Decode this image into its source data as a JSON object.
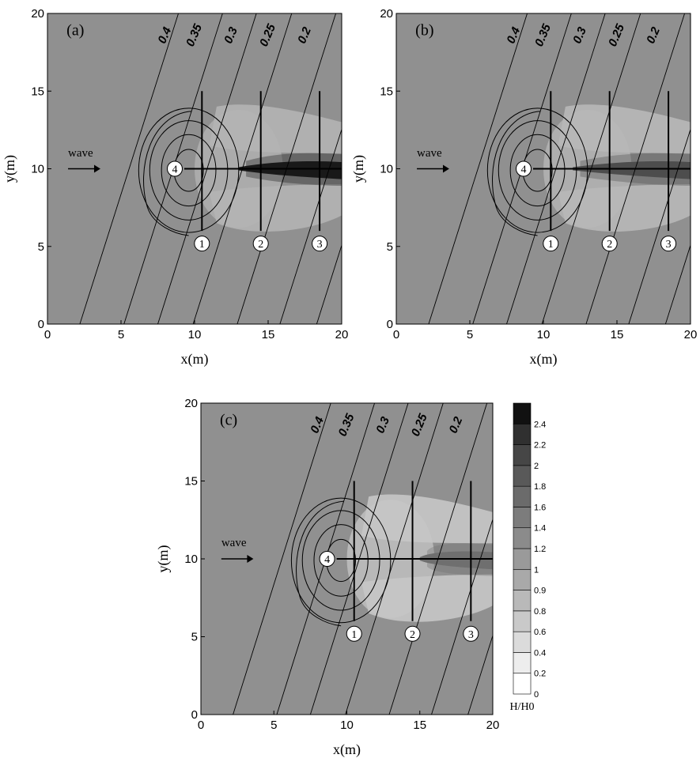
{
  "chart_data": [
    {
      "type": "heatmap",
      "panel_label": "(a)",
      "xlabel": "x(m)",
      "ylabel": "y(m)",
      "xlim": [
        0,
        20
      ],
      "ylim": [
        0,
        20
      ],
      "x_ticks": [
        "0",
        "5",
        "10",
        "15",
        "20"
      ],
      "y_ticks": [
        "0",
        "5",
        "10",
        "15",
        "20"
      ],
      "depth_contours": [
        "0.4",
        "0.35",
        "0.3",
        "0.25",
        "0.2"
      ],
      "wave_label": "wave",
      "transects": [
        {
          "id": "1",
          "x": 10.5,
          "y_from": 6,
          "y_to": 15
        },
        {
          "id": "2",
          "x": 14.5,
          "y_from": 6,
          "y_to": 15
        },
        {
          "id": "3",
          "x": 18.5,
          "y_from": 6,
          "y_to": 15
        },
        {
          "id": "4",
          "y": 10,
          "x_from": 9.3,
          "x_to": 20
        }
      ],
      "focusing": "strong",
      "background_H_H0": 1.1,
      "max_H_H0": 2.4
    },
    {
      "type": "heatmap",
      "panel_label": "(b)",
      "xlabel": "x(m)",
      "ylabel": "y(m)",
      "xlim": [
        0,
        20
      ],
      "ylim": [
        0,
        20
      ],
      "x_ticks": [
        "0",
        "5",
        "10",
        "15",
        "20"
      ],
      "y_ticks": [
        "0",
        "5",
        "10",
        "15",
        "20"
      ],
      "depth_contours": [
        "0.4",
        "0.35",
        "0.3",
        "0.25",
        "0.2"
      ],
      "wave_label": "wave",
      "transects": [
        {
          "id": "1",
          "x": 10.5,
          "y_from": 6,
          "y_to": 15
        },
        {
          "id": "2",
          "x": 14.5,
          "y_from": 6,
          "y_to": 15
        },
        {
          "id": "3",
          "x": 18.5,
          "y_from": 6,
          "y_to": 15
        },
        {
          "id": "4",
          "y": 10,
          "x_from": 9.3,
          "x_to": 20
        }
      ],
      "focusing": "medium",
      "background_H_H0": 1.1,
      "max_H_H0": 1.8
    },
    {
      "type": "heatmap",
      "panel_label": "(c)",
      "xlabel": "x(m)",
      "ylabel": "y(m)",
      "xlim": [
        0,
        20
      ],
      "ylim": [
        0,
        20
      ],
      "x_ticks": [
        "0",
        "5",
        "10",
        "15",
        "20"
      ],
      "y_ticks": [
        "0",
        "5",
        "10",
        "15",
        "20"
      ],
      "depth_contours": [
        "0.4",
        "0.35",
        "0.3",
        "0.25",
        "0.2"
      ],
      "wave_label": "wave",
      "transects": [
        {
          "id": "1",
          "x": 10.5,
          "y_from": 6,
          "y_to": 15
        },
        {
          "id": "2",
          "x": 14.5,
          "y_from": 6,
          "y_to": 15
        },
        {
          "id": "3",
          "x": 18.5,
          "y_from": 6,
          "y_to": 15
        },
        {
          "id": "4",
          "y": 10,
          "x_from": 9.3,
          "x_to": 20
        }
      ],
      "focusing": "weak",
      "background_H_H0": 1.1,
      "max_H_H0": 1.4
    }
  ],
  "colorbar": {
    "title": "H/H0",
    "levels": [
      "0",
      "0.2",
      "0.4",
      "0.6",
      "0.8",
      "0.9",
      "1",
      "1.2",
      "1.4",
      "1.6",
      "1.8",
      "2",
      "2.2",
      "2.4"
    ],
    "colors": [
      "#ffffff",
      "#ededed",
      "#dbdbdb",
      "#c9c9c9",
      "#b9b9b9",
      "#a9a9a9",
      "#9a9a9a",
      "#8b8b8b",
      "#7c7c7c",
      "#6b6b6b",
      "#595959",
      "#464646",
      "#303030",
      "#111111"
    ]
  }
}
